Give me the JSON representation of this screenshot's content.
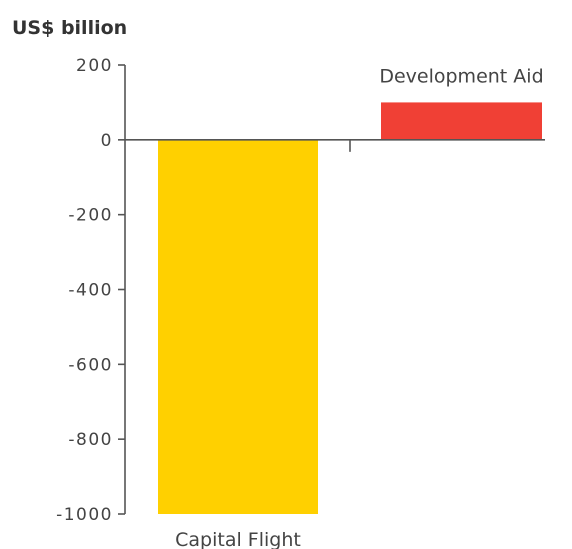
{
  "chart_data": {
    "type": "bar",
    "unit_label": "US$ billion",
    "categories": [
      "Capital Flight",
      "Development Aid"
    ],
    "values": [
      -1000,
      100
    ],
    "colors": [
      "#ffd000",
      "#f04035"
    ],
    "ylim": [
      -1000,
      200
    ],
    "yticks": [
      200,
      0,
      -200,
      -400,
      -600,
      -800,
      -1000
    ],
    "ytick_labels": [
      "200",
      "0",
      "-200",
      "-400",
      "-600",
      "-800",
      "-1000"
    ],
    "category_label_positions": [
      "below",
      "above"
    ],
    "grid": false,
    "legend": "none"
  }
}
